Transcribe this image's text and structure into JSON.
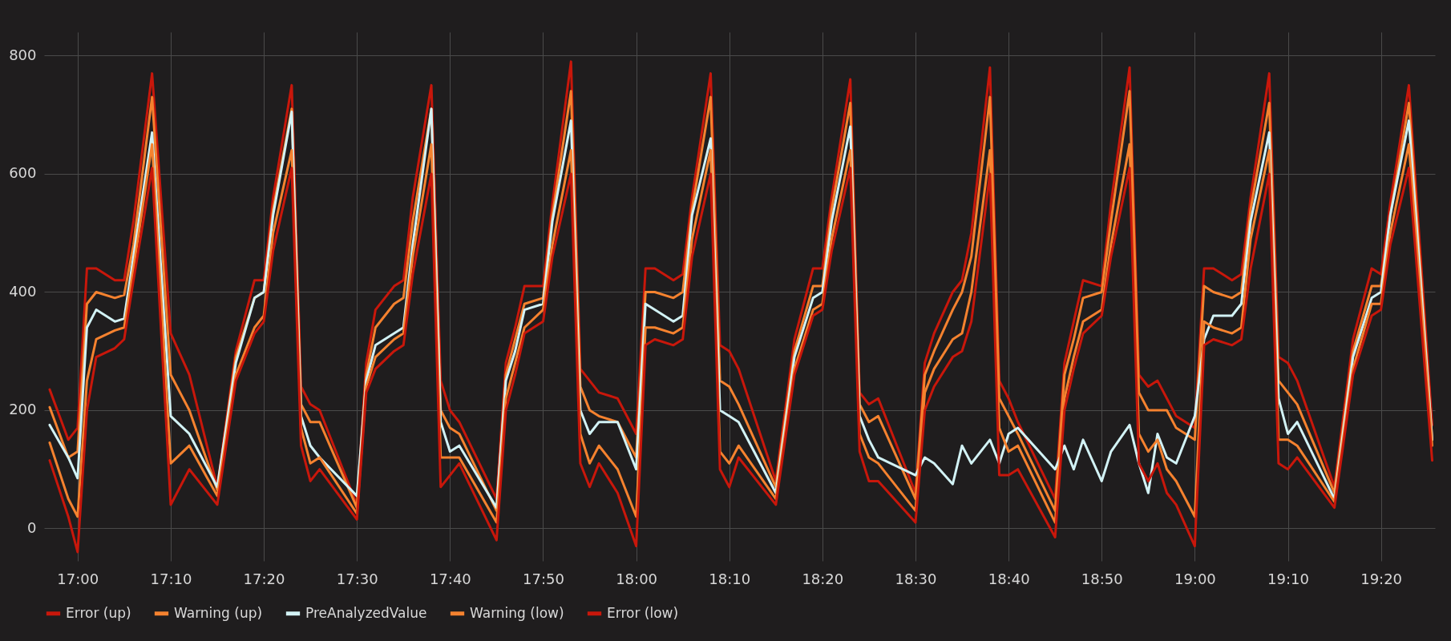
{
  "chart_data": {
    "type": "line",
    "x": [
      16.95,
      16.9833,
      17,
      17.0167,
      17.0333,
      17.0667,
      17.0833,
      17.1,
      17.1333,
      17.1667,
      17.2,
      17.25,
      17.2833,
      17.3167,
      17.3333,
      17.35,
      17.3833,
      17.4,
      17.4167,
      17.4333,
      17.5,
      17.5167,
      17.5333,
      17.5667,
      17.5833,
      17.6,
      17.6333,
      17.65,
      17.6667,
      17.6833,
      17.75,
      17.7667,
      17.7833,
      17.8,
      17.8333,
      17.85,
      17.8833,
      17.9,
      17.9167,
      17.9333,
      17.9667,
      18,
      18.0167,
      18.0333,
      18.0667,
      18.0833,
      18.1,
      18.1333,
      18.15,
      18.1667,
      18.1833,
      18.25,
      18.2833,
      18.3167,
      18.3333,
      18.35,
      18.3833,
      18.4,
      18.4167,
      18.4333,
      18.5,
      18.5167,
      18.5333,
      18.5667,
      18.5833,
      18.6,
      18.6333,
      18.65,
      18.6667,
      18.6833,
      18.75,
      18.7667,
      18.7833,
      18.8,
      18.8333,
      18.85,
      18.8833,
      18.9,
      18.9167,
      18.9333,
      18.95,
      18.9667,
      19,
      19.0167,
      19.0333,
      19.0667,
      19.0833,
      19.1,
      19.1333,
      19.15,
      19.1667,
      19.1833,
      19.25,
      19.2833,
      19.3167,
      19.3333,
      19.35,
      19.3833,
      19.425
    ],
    "series": [
      {
        "name": "Error (up)",
        "color": "#c8170b",
        "values": [
          235,
          150,
          170,
          440,
          440,
          420,
          420,
          520,
          770,
          330,
          260,
          70,
          300,
          420,
          420,
          560,
          750,
          240,
          210,
          200,
          40,
          280,
          370,
          410,
          420,
          560,
          750,
          250,
          200,
          180,
          50,
          280,
          340,
          410,
          410,
          550,
          790,
          270,
          250,
          230,
          220,
          160,
          440,
          440,
          420,
          430,
          560,
          770,
          310,
          300,
          270,
          80,
          320,
          440,
          440,
          560,
          760,
          230,
          210,
          220,
          60,
          280,
          330,
          400,
          420,
          500,
          780,
          250,
          220,
          180,
          50,
          280,
          350,
          420,
          410,
          550,
          780,
          260,
          240,
          250,
          220,
          190,
          170,
          440,
          440,
          420,
          430,
          560,
          770,
          290,
          280,
          250,
          70,
          320,
          440,
          430,
          550,
          750,
          175
        ]
      },
      {
        "name": "Warning (up)",
        "color": "#f5822f",
        "values": [
          205,
          120,
          130,
          380,
          400,
          390,
          395,
          480,
          730,
          260,
          200,
          65,
          290,
          390,
          400,
          540,
          710,
          210,
          180,
          180,
          35,
          260,
          340,
          380,
          390,
          520,
          710,
          200,
          170,
          160,
          30,
          260,
          320,
          380,
          390,
          530,
          740,
          240,
          200,
          190,
          180,
          120,
          400,
          400,
          390,
          400,
          540,
          730,
          250,
          240,
          210,
          70,
          300,
          410,
          410,
          540,
          720,
          210,
          180,
          190,
          50,
          260,
          300,
          370,
          400,
          460,
          730,
          220,
          190,
          160,
          30,
          260,
          320,
          390,
          400,
          520,
          740,
          230,
          200,
          200,
          200,
          170,
          150,
          410,
          400,
          390,
          400,
          540,
          720,
          250,
          230,
          210,
          60,
          300,
          410,
          410,
          530,
          720,
          150
        ]
      },
      {
        "name": "PreAnalyzedValue",
        "color": "#d2f2f5",
        "values": [
          175,
          120,
          85,
          340,
          370,
          350,
          355,
          460,
          670,
          190,
          160,
          70,
          280,
          390,
          400,
          530,
          705,
          190,
          140,
          120,
          55,
          250,
          310,
          330,
          340,
          480,
          710,
          180,
          130,
          140,
          35,
          250,
          300,
          370,
          380,
          520,
          690,
          200,
          160,
          180,
          180,
          100,
          380,
          370,
          350,
          360,
          530,
          660,
          200,
          190,
          180,
          60,
          290,
          390,
          400,
          520,
          680,
          190,
          150,
          120,
          90,
          120,
          110,
          75,
          140,
          110,
          150,
          110,
          160,
          170,
          100,
          140,
          100,
          150,
          80,
          130,
          175,
          110,
          60,
          160,
          120,
          110,
          190,
          320,
          360,
          360,
          380,
          520,
          670,
          220,
          160,
          180,
          50,
          290,
          390,
          400,
          530,
          690,
          150
        ]
      },
      {
        "name": "Warning (low)",
        "color": "#f5822f",
        "values": [
          145,
          50,
          20,
          250,
          320,
          335,
          340,
          440,
          650,
          110,
          140,
          55,
          260,
          340,
          360,
          500,
          640,
          170,
          110,
          120,
          25,
          240,
          290,
          320,
          330,
          460,
          650,
          120,
          120,
          120,
          10,
          220,
          280,
          340,
          370,
          480,
          640,
          160,
          110,
          140,
          100,
          20,
          340,
          340,
          330,
          340,
          490,
          640,
          130,
          110,
          140,
          50,
          270,
          370,
          380,
          490,
          640,
          160,
          120,
          110,
          30,
          230,
          270,
          320,
          330,
          400,
          640,
          170,
          130,
          140,
          10,
          220,
          290,
          350,
          370,
          480,
          650,
          160,
          130,
          150,
          100,
          80,
          20,
          350,
          340,
          330,
          340,
          490,
          640,
          150,
          150,
          140,
          45,
          270,
          380,
          380,
          500,
          650,
          140
        ]
      },
      {
        "name": "Error (low)",
        "color": "#c8170b",
        "values": [
          115,
          20,
          -40,
          200,
          290,
          305,
          320,
          420,
          610,
          40,
          100,
          40,
          250,
          330,
          350,
          470,
          610,
          140,
          80,
          100,
          15,
          230,
          270,
          300,
          310,
          430,
          600,
          70,
          90,
          110,
          -20,
          200,
          260,
          330,
          350,
          460,
          600,
          110,
          70,
          110,
          60,
          -30,
          310,
          320,
          310,
          320,
          460,
          600,
          100,
          70,
          120,
          40,
          260,
          360,
          370,
          470,
          610,
          130,
          80,
          80,
          10,
          200,
          240,
          290,
          300,
          350,
          600,
          90,
          90,
          100,
          -15,
          200,
          270,
          330,
          360,
          460,
          610,
          110,
          80,
          110,
          60,
          40,
          -30,
          310,
          320,
          310,
          320,
          440,
          600,
          110,
          100,
          120,
          35,
          260,
          360,
          370,
          480,
          610,
          115
        ]
      }
    ],
    "xlim": [
      16.94,
      19.43
    ],
    "xticks": [
      {
        "value": 17,
        "label": "17:00"
      },
      {
        "value": 17.1667,
        "label": "17:10"
      },
      {
        "value": 17.3333,
        "label": "17:20"
      },
      {
        "value": 17.5,
        "label": "17:30"
      },
      {
        "value": 17.6667,
        "label": "17:40"
      },
      {
        "value": 17.8333,
        "label": "17:50"
      },
      {
        "value": 18,
        "label": "18:00"
      },
      {
        "value": 18.1667,
        "label": "18:10"
      },
      {
        "value": 18.3333,
        "label": "18:20"
      },
      {
        "value": 18.5,
        "label": "18:30"
      },
      {
        "value": 18.6667,
        "label": "18:40"
      },
      {
        "value": 18.8333,
        "label": "18:50"
      },
      {
        "value": 19,
        "label": "19:00"
      },
      {
        "value": 19.1667,
        "label": "19:10"
      },
      {
        "value": 19.3333,
        "label": "19:20"
      }
    ],
    "ylim": [
      -55,
      840
    ],
    "yticks": [
      0,
      200,
      400,
      600,
      800
    ],
    "grid": true,
    "legend": "bottom left",
    "line_style": "solid"
  }
}
